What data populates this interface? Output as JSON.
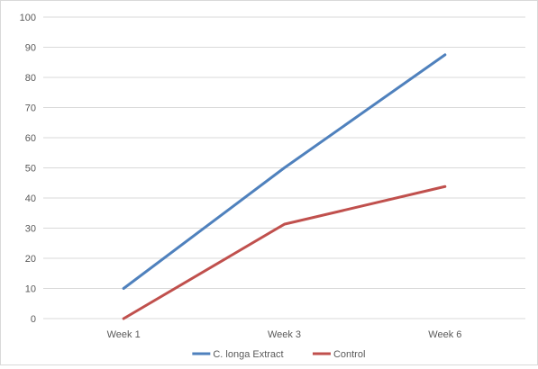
{
  "chart_data": {
    "type": "line",
    "title": "",
    "xlabel": "",
    "ylabel": "",
    "categories": [
      "Week 1",
      "Week 3",
      "Week 6"
    ],
    "ylim": [
      0,
      100
    ],
    "yticks": [
      0,
      10,
      20,
      30,
      40,
      50,
      60,
      70,
      80,
      90,
      100
    ],
    "grid": true,
    "legend_position": "bottom",
    "series": [
      {
        "name": "C. longa Extract",
        "values": [
          10,
          50,
          87.5
        ],
        "color": "#4f81bd"
      },
      {
        "name": "Control",
        "values": [
          0,
          31.3,
          43.8
        ],
        "color": "#c0504d"
      }
    ]
  }
}
